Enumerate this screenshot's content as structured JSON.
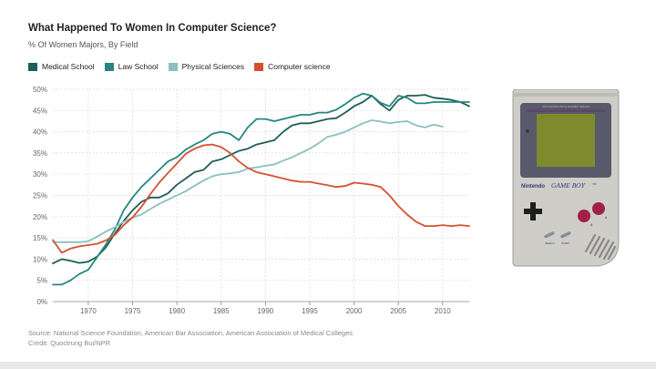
{
  "chart_data": {
    "type": "line",
    "title": "What Happened To Women In Computer Science?",
    "subtitle": "% Of Women Majors, By Field",
    "xlabel": "",
    "ylabel": "",
    "xlim": [
      1966,
      2013
    ],
    "ylim": [
      0,
      50
    ],
    "x_ticks": [
      1970,
      1975,
      1980,
      1985,
      1990,
      1995,
      2000,
      2005,
      2010
    ],
    "y_ticks": [
      0,
      5,
      10,
      15,
      20,
      25,
      30,
      35,
      40,
      45,
      50
    ],
    "y_tick_labels": [
      "0%",
      "5%",
      "10%",
      "15%",
      "20%",
      "25%",
      "30%",
      "35%",
      "40%",
      "45%",
      "50%"
    ],
    "grid": true,
    "legend_position": "top-left",
    "series": [
      {
        "name": "Medical School",
        "color": "#1d5f56",
        "points": [
          [
            1966,
            9
          ],
          [
            1967,
            10
          ],
          [
            1968,
            9.6
          ],
          [
            1969,
            9.1
          ],
          [
            1970,
            9.4
          ],
          [
            1971,
            10.6
          ],
          [
            1972,
            12.8
          ],
          [
            1973,
            16
          ],
          [
            1974,
            19
          ],
          [
            1975,
            21.5
          ],
          [
            1976,
            23.5
          ],
          [
            1977,
            24.5
          ],
          [
            1978,
            24.5
          ],
          [
            1979,
            25.5
          ],
          [
            1980,
            27.5
          ],
          [
            1981,
            29
          ],
          [
            1982,
            30.5
          ],
          [
            1983,
            31
          ],
          [
            1984,
            33
          ],
          [
            1985,
            33.5
          ],
          [
            1986,
            34.5
          ],
          [
            1987,
            35.5
          ],
          [
            1988,
            36
          ],
          [
            1989,
            37
          ],
          [
            1990,
            37.5
          ],
          [
            1991,
            38
          ],
          [
            1992,
            40
          ],
          [
            1993,
            41.5
          ],
          [
            1994,
            42
          ],
          [
            1995,
            42
          ],
          [
            1996,
            42.5
          ],
          [
            1997,
            43
          ],
          [
            1998,
            43.2
          ],
          [
            1999,
            44.5
          ],
          [
            2000,
            46
          ],
          [
            2001,
            47
          ],
          [
            2002,
            48.5
          ],
          [
            2003,
            46.5
          ],
          [
            2004,
            45
          ],
          [
            2005,
            47.5
          ],
          [
            2006,
            48.5
          ],
          [
            2007,
            48.5
          ],
          [
            2008,
            48.7
          ],
          [
            2009,
            48
          ],
          [
            2010,
            47.8
          ],
          [
            2011,
            47.5
          ],
          [
            2012,
            47
          ],
          [
            2013,
            46
          ]
        ]
      },
      {
        "name": "Law School",
        "color": "#288580",
        "points": [
          [
            1966,
            4
          ],
          [
            1967,
            4
          ],
          [
            1968,
            5
          ],
          [
            1969,
            6.5
          ],
          [
            1970,
            7.5
          ],
          [
            1971,
            10.5
          ],
          [
            1972,
            13.5
          ],
          [
            1973,
            17
          ],
          [
            1974,
            21.5
          ],
          [
            1975,
            24.5
          ],
          [
            1976,
            27
          ],
          [
            1977,
            29
          ],
          [
            1978,
            31
          ],
          [
            1979,
            33
          ],
          [
            1980,
            34
          ],
          [
            1981,
            35.8
          ],
          [
            1982,
            37
          ],
          [
            1983,
            38
          ],
          [
            1984,
            39.5
          ],
          [
            1985,
            40
          ],
          [
            1986,
            39.5
          ],
          [
            1987,
            38
          ],
          [
            1988,
            41
          ],
          [
            1989,
            43
          ],
          [
            1990,
            43
          ],
          [
            1991,
            42.5
          ],
          [
            1992,
            43
          ],
          [
            1993,
            43.5
          ],
          [
            1994,
            44
          ],
          [
            1995,
            44
          ],
          [
            1996,
            44.5
          ],
          [
            1997,
            44.5
          ],
          [
            1998,
            45.2
          ],
          [
            1999,
            46.5
          ],
          [
            2000,
            48
          ],
          [
            2001,
            49
          ],
          [
            2002,
            48.5
          ],
          [
            2003,
            46.8
          ],
          [
            2004,
            46
          ],
          [
            2005,
            48.5
          ],
          [
            2006,
            48
          ],
          [
            2007,
            46.7
          ],
          [
            2008,
            46.7
          ],
          [
            2009,
            47
          ],
          [
            2010,
            47
          ],
          [
            2011,
            47
          ],
          [
            2012,
            47
          ],
          [
            2013,
            47
          ]
        ]
      },
      {
        "name": "Physical Sciences",
        "color": "#8cbfbf",
        "points": [
          [
            1966,
            14
          ],
          [
            1967,
            14
          ],
          [
            1968,
            14
          ],
          [
            1969,
            14
          ],
          [
            1970,
            14.2
          ],
          [
            1971,
            15.3
          ],
          [
            1972,
            16.5
          ],
          [
            1973,
            17.5
          ],
          [
            1974,
            18.8
          ],
          [
            1975,
            19.8
          ],
          [
            1976,
            20.5
          ],
          [
            1977,
            21.8
          ],
          [
            1978,
            23
          ],
          [
            1979,
            24
          ],
          [
            1980,
            25
          ],
          [
            1981,
            26
          ],
          [
            1982,
            27.3
          ],
          [
            1983,
            28.5
          ],
          [
            1984,
            29.5
          ],
          [
            1985,
            30
          ],
          [
            1986,
            30.2
          ],
          [
            1987,
            30.5
          ],
          [
            1988,
            31.3
          ],
          [
            1989,
            31.6
          ],
          [
            1990,
            32
          ],
          [
            1991,
            32.3
          ],
          [
            1992,
            33.2
          ],
          [
            1993,
            34
          ],
          [
            1994,
            35
          ],
          [
            1995,
            36
          ],
          [
            1996,
            37.3
          ],
          [
            1997,
            38.8
          ],
          [
            1998,
            39.3
          ],
          [
            1999,
            40
          ],
          [
            2000,
            41
          ],
          [
            2001,
            42
          ],
          [
            2002,
            42.7
          ],
          [
            2003,
            42.4
          ],
          [
            2004,
            42
          ],
          [
            2005,
            42.3
          ],
          [
            2006,
            42.5
          ],
          [
            2007,
            41.5
          ],
          [
            2008,
            41
          ],
          [
            2009,
            41.7
          ],
          [
            2010,
            41.2
          ]
        ]
      },
      {
        "name": "Computer science",
        "color": "#d6502f",
        "points": [
          [
            1966,
            14.5
          ],
          [
            1967,
            11.5
          ],
          [
            1968,
            12.5
          ],
          [
            1969,
            13
          ],
          [
            1970,
            13.3
          ],
          [
            1971,
            13.6
          ],
          [
            1972,
            14.4
          ],
          [
            1973,
            15.7
          ],
          [
            1974,
            18
          ],
          [
            1975,
            19.8
          ],
          [
            1976,
            22.3
          ],
          [
            1977,
            25.3
          ],
          [
            1978,
            28
          ],
          [
            1979,
            30.3
          ],
          [
            1980,
            32.5
          ],
          [
            1981,
            34.8
          ],
          [
            1982,
            36
          ],
          [
            1983,
            36.8
          ],
          [
            1984,
            37
          ],
          [
            1985,
            36.4
          ],
          [
            1986,
            35
          ],
          [
            1987,
            33
          ],
          [
            1988,
            31.5
          ],
          [
            1989,
            30.5
          ],
          [
            1990,
            30
          ],
          [
            1991,
            29.5
          ],
          [
            1992,
            29
          ],
          [
            1993,
            28.5
          ],
          [
            1994,
            28.2
          ],
          [
            1995,
            28.2
          ],
          [
            1996,
            27.8
          ],
          [
            1997,
            27.4
          ],
          [
            1998,
            27
          ],
          [
            1999,
            27.2
          ],
          [
            2000,
            28
          ],
          [
            2001,
            27.8
          ],
          [
            2002,
            27.5
          ],
          [
            2003,
            27
          ],
          [
            2004,
            25
          ],
          [
            2005,
            22.5
          ],
          [
            2006,
            20.5
          ],
          [
            2007,
            18.8
          ],
          [
            2008,
            17.8
          ],
          [
            2009,
            17.8
          ],
          [
            2010,
            18
          ],
          [
            2011,
            17.8
          ],
          [
            2012,
            18
          ],
          [
            2013,
            17.8
          ]
        ]
      }
    ]
  },
  "footer": {
    "source": "Source: National Science Foundation, American Bar Association, American Association of Medical Colleges",
    "credit": "Credit: Quoctrung Bui/NPR"
  },
  "device": {
    "brand": "Nintendo",
    "model": "GAME BOY",
    "model_suffix": "TM",
    "button_b": "B",
    "button_a": "A",
    "select_label": "SELECT",
    "start_label": "START",
    "screen_banner": "DOT MATRIX WITH STEREO SOUND"
  }
}
